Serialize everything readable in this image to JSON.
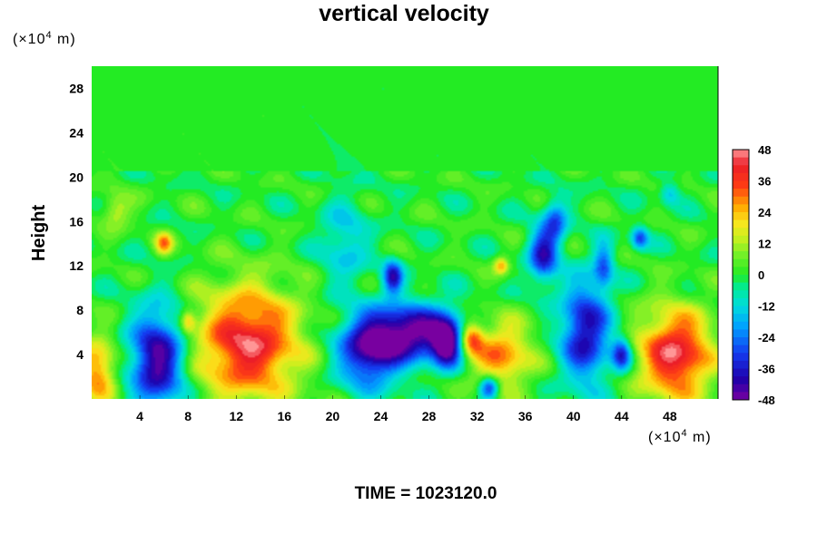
{
  "chart_data": {
    "type": "heatmap",
    "title": "vertical velocity",
    "ylabel": "Height",
    "y_unit_prefix": "(×10",
    "y_unit_exp": "4",
    "y_unit_suffix": " m)",
    "x_unit_prefix": "(×10",
    "x_unit_exp": "4",
    "x_unit_suffix": " m)",
    "xlim": [
      0,
      52
    ],
    "ylim": [
      0,
      30
    ],
    "x_ticks": [
      "4",
      "8",
      "12",
      "16",
      "20",
      "24",
      "28",
      "32",
      "36",
      "40",
      "44",
      "48"
    ],
    "y_ticks": [
      "4",
      "8",
      "12",
      "16",
      "20",
      "24",
      "28"
    ],
    "colorbar": {
      "range": [
        -48,
        48
      ],
      "ticks": [
        "48",
        "36",
        "24",
        "12",
        "0",
        "-12",
        "-24",
        "-36",
        "-48"
      ]
    },
    "features": [
      {
        "x": 0.5,
        "y": 2.5,
        "value": 30,
        "rx": 1.5,
        "ry": 3.0
      },
      {
        "x": 5.5,
        "y": 3.5,
        "value": -46,
        "rx": 2.2,
        "ry": 4.5
      },
      {
        "x": 6.0,
        "y": 14.0,
        "value": 26,
        "rx": 0.7,
        "ry": 1.0
      },
      {
        "x": 8.0,
        "y": 7.0,
        "value": 20,
        "rx": 0.6,
        "ry": 1.0
      },
      {
        "x": 13.0,
        "y": 5.0,
        "value": 44,
        "rx": 4.2,
        "ry": 5.0
      },
      {
        "x": 26.5,
        "y": 6.0,
        "value": -48,
        "rx": 4.0,
        "ry": 2.5
      },
      {
        "x": 23.0,
        "y": 4.0,
        "value": -38,
        "rx": 2.5,
        "ry": 3.0
      },
      {
        "x": 29.5,
        "y": 5.0,
        "value": -44,
        "rx": 1.2,
        "ry": 2.0
      },
      {
        "x": 25.0,
        "y": 11.0,
        "value": -36,
        "rx": 0.8,
        "ry": 1.5
      },
      {
        "x": 21.0,
        "y": 14.0,
        "value": -15,
        "rx": 2.0,
        "ry": 4.0
      },
      {
        "x": 31.5,
        "y": 5.5,
        "value": 35,
        "rx": 1.0,
        "ry": 1.5
      },
      {
        "x": 34.0,
        "y": 4.0,
        "value": 30,
        "rx": 2.5,
        "ry": 3.0
      },
      {
        "x": 34.0,
        "y": 12.0,
        "value": 24,
        "rx": 0.6,
        "ry": 0.8
      },
      {
        "x": 33.0,
        "y": 1.0,
        "value": -36,
        "rx": 0.8,
        "ry": 1.0
      },
      {
        "x": 37.5,
        "y": 13.0,
        "value": -36,
        "rx": 1.2,
        "ry": 2.5
      },
      {
        "x": 38.5,
        "y": 16.0,
        "value": -25,
        "rx": 1.0,
        "ry": 2.0
      },
      {
        "x": 41.0,
        "y": 6.0,
        "value": -40,
        "rx": 2.0,
        "ry": 4.5
      },
      {
        "x": 42.5,
        "y": 12.0,
        "value": -25,
        "rx": 0.8,
        "ry": 2.0
      },
      {
        "x": 44.0,
        "y": 4.0,
        "value": -34,
        "rx": 0.8,
        "ry": 1.5
      },
      {
        "x": 45.5,
        "y": 14.5,
        "value": -30,
        "rx": 0.7,
        "ry": 1.0
      },
      {
        "x": 48.5,
        "y": 4.0,
        "value": 45,
        "rx": 3.0,
        "ry": 4.0
      },
      {
        "x": 48.0,
        "y": 18.5,
        "value": -16,
        "rx": 0.8,
        "ry": 1.0
      },
      {
        "x": 2.0,
        "y": 17.0,
        "value": 16,
        "rx": 1.2,
        "ry": 1.5
      }
    ]
  },
  "footer": {
    "time_text": "TIME = 1023120.0"
  }
}
